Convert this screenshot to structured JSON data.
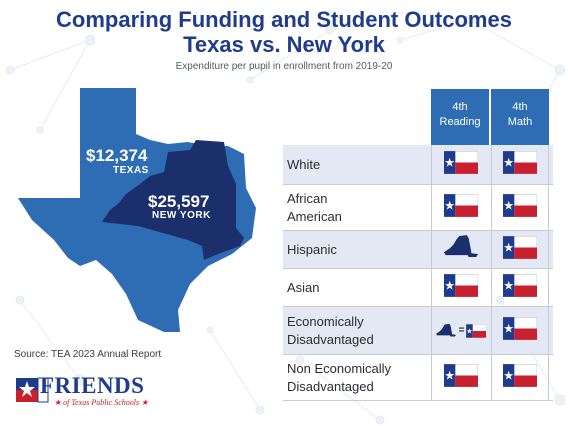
{
  "title_line1": "Comparing Funding and Student Outcomes",
  "title_line2": "Texas vs. New York",
  "subtitle": "Expenditure per pupil in enrollment from 2019-20",
  "texas": {
    "amount": "$12,374",
    "label": "TEXAS"
  },
  "new_york": {
    "amount": "$25,597",
    "label": "NEW YORK"
  },
  "source": "Source: TEA 2023 Annual Report",
  "logo": {
    "word": "FRIENDS",
    "sub": "★ of Texas Public Schools ★"
  },
  "table": {
    "headers": [
      "4th\nReading",
      "4th\nMath"
    ],
    "header_lines": [
      [
        "4th",
        "Reading"
      ],
      [
        "4th",
        "Math"
      ]
    ],
    "rows": [
      {
        "label_lines": [
          "White"
        ],
        "reading": "texas-flag",
        "math": "texas-flag"
      },
      {
        "label_lines": [
          "African",
          "American"
        ],
        "reading": "texas-flag",
        "math": "texas-flag"
      },
      {
        "label_lines": [
          "Hispanic"
        ],
        "reading": "new-york-state",
        "math": "texas-flag"
      },
      {
        "label_lines": [
          "Asian"
        ],
        "reading": "texas-flag",
        "math": "texas-flag"
      },
      {
        "label_lines": [
          "Economically",
          "Disadvantaged"
        ],
        "reading": "new-york-equals-texas",
        "math": "texas-flag"
      },
      {
        "label_lines": [
          "Non Economically",
          "Disadvantaged"
        ],
        "reading": "texas-flag",
        "math": "texas-flag"
      }
    ]
  },
  "colors": {
    "title": "#1f3c8c",
    "texas_map": "#2e6db4",
    "new_york_map": "#1a2f6b",
    "header": "#2e6db4",
    "flag_red": "#c8202f",
    "flag_blue": "#1f3c8c"
  }
}
